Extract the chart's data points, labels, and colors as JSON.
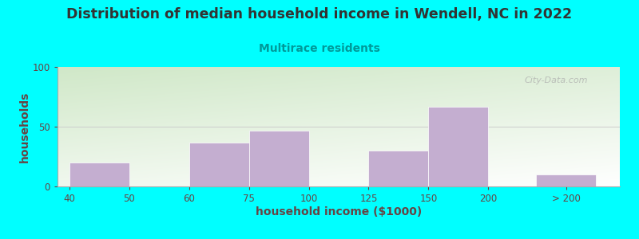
{
  "title": "Distribution of median household income in Wendell, NC in 2022",
  "subtitle": "Multirace residents",
  "xlabel": "household income ($1000)",
  "ylabel": "households",
  "bar_heights": [
    20,
    37,
    47,
    30,
    67,
    10
  ],
  "bar_color": "#c4aed0",
  "bars": [
    {
      "x_start": 0,
      "x_end": 1,
      "height": 20
    },
    {
      "x_start": 2,
      "x_end": 3,
      "height": 37
    },
    {
      "x_start": 3,
      "x_end": 4,
      "height": 47
    },
    {
      "x_start": 5,
      "x_end": 6,
      "height": 30
    },
    {
      "x_start": 6,
      "x_end": 7,
      "height": 67
    },
    {
      "x_start": 7.8,
      "x_end": 8.8,
      "height": 10
    }
  ],
  "tick_vals": [
    0,
    1,
    2,
    3,
    4,
    5,
    6,
    7,
    7.8,
    8.8
  ],
  "tick_labels": [
    "40",
    "50",
    "60",
    "75",
    "100",
    "125",
    "150",
    "200",
    "",
    "> 200"
  ],
  "special_ticks": [
    8.3
  ],
  "special_tick_labels": [
    "> 200"
  ],
  "ylim": [
    0,
    100
  ],
  "yticks": [
    0,
    50,
    100
  ],
  "xlim": [
    -0.2,
    9.2
  ],
  "background_outer": "#00ffff",
  "bg_top_left": "#d0e8c8",
  "bg_bottom_right": "#ffffff",
  "title_color": "#333333",
  "subtitle_color": "#009999",
  "axis_label_color": "#664444",
  "tick_label_color": "#664444",
  "watermark": "City-Data.com",
  "title_fontsize": 12.5,
  "subtitle_fontsize": 10,
  "label_fontsize": 10
}
